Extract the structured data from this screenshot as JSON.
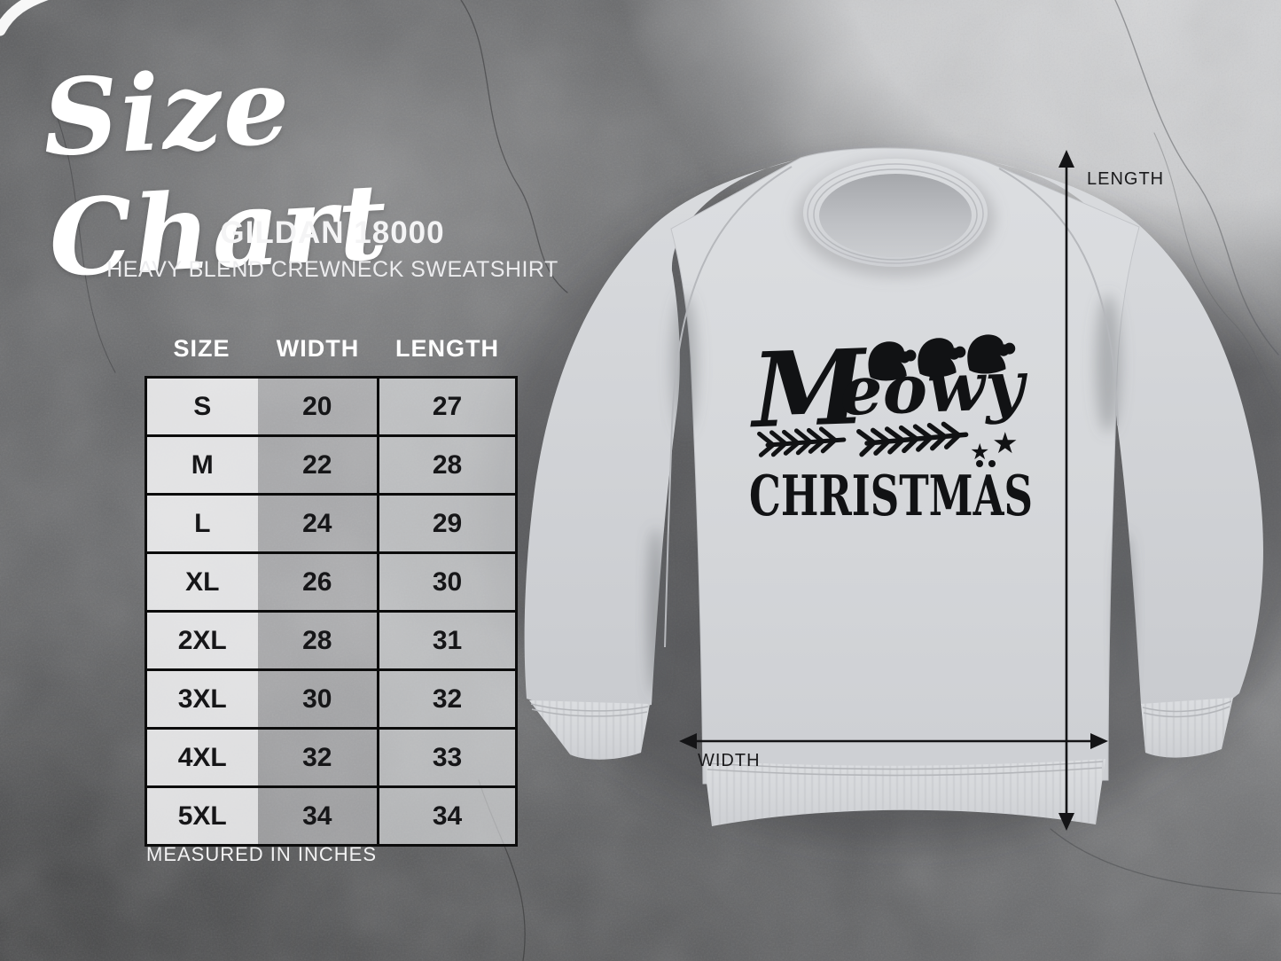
{
  "header": {
    "title": "Size Chart",
    "product_model": "GILDAN 18000",
    "product_name": "HEAVY BLEND CREWNECK SWEATSHIRT"
  },
  "chart_data": {
    "type": "table",
    "title": "Size Chart",
    "subtitle": "Gildan 18000 Heavy Blend Crewneck Sweatshirt",
    "unit": "inches",
    "columns": [
      "SIZE",
      "WIDTH",
      "LENGTH"
    ],
    "rows": [
      [
        "S",
        "20",
        "27"
      ],
      [
        "M",
        "22",
        "28"
      ],
      [
        "L",
        "24",
        "29"
      ],
      [
        "XL",
        "26",
        "30"
      ],
      [
        "2XL",
        "28",
        "31"
      ],
      [
        "3XL",
        "30",
        "32"
      ],
      [
        "4XL",
        "32",
        "33"
      ],
      [
        "5XL",
        "34",
        "34"
      ]
    ]
  },
  "footnote": "MEASURED IN INCHES",
  "mockup": {
    "design_line1_initial": "M",
    "design_line1_rest": "eowy",
    "design_line2": "CHRISTMAS",
    "star_glyph": "★",
    "length_label": "LENGTH",
    "width_label": "WIDTH"
  },
  "colors": {
    "background_dark": "#3e3f41",
    "background_mid": "#6b6c6e",
    "background_light": "#d0d1d3",
    "fabric": "#d6d8db",
    "design_ink": "#111214",
    "table_border": "#0c0c0c",
    "table_text": "#161618",
    "light_text": "#ffffff",
    "arrow_color": "#141416"
  }
}
